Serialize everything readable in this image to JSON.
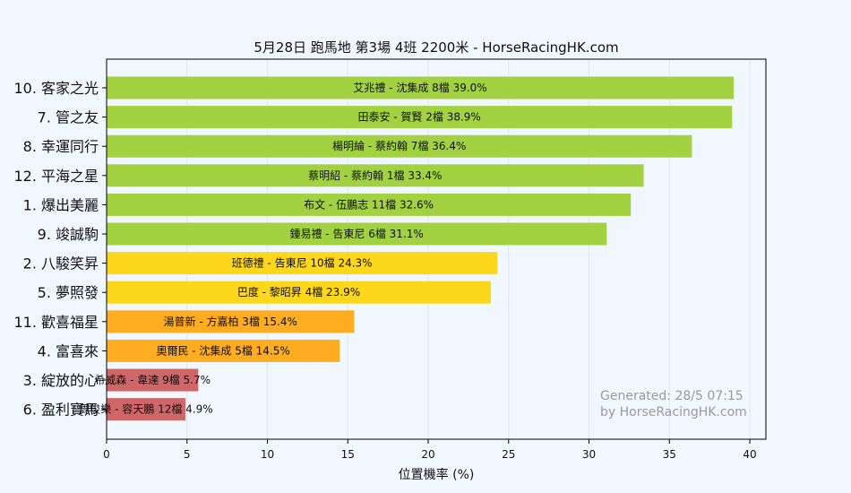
{
  "chart_data": {
    "type": "bar",
    "orientation": "horizontal",
    "title": "5月28日  跑馬地  第3場  4班  2200米 - HorseRacingHK.com",
    "xlabel": "位置機率 (%)",
    "ylabel": "",
    "xlim": [
      0,
      41
    ],
    "xticks": [
      0,
      5,
      10,
      15,
      20,
      25,
      30,
      35,
      40
    ],
    "grid": true,
    "categories": [
      "10. 客家之光",
      "7. 管之友",
      "8. 幸運同行",
      "12. 平海之星",
      "1. 爆出美麗",
      "9. 竣誠駒",
      "2. 八駿笑昇",
      "5. 夢照發",
      "11. 歡喜福星",
      "4. 富喜來",
      "3. 綻放的心",
      "6. 盈利寶馬"
    ],
    "values": [
      39.0,
      38.9,
      36.4,
      33.4,
      32.6,
      31.1,
      24.3,
      23.9,
      15.4,
      14.5,
      5.7,
      4.9
    ],
    "bar_labels": [
      "艾兆禮 - 沈集成 8檔  39.0%",
      "田泰安 - 賀賢 2檔  38.9%",
      "楊明綸 - 蔡約翰 7檔  36.4%",
      "蔡明紹 - 蔡約翰 1檔  33.4%",
      "布文 - 伍鵬志 11檔  32.6%",
      "鍾易禮 - 告東尼 6檔  31.1%",
      "班德禮 - 告東尼 10檔  24.3%",
      "巴度 - 黎昭昇 4檔  23.9%",
      "湯普新 - 方嘉柏 3檔  15.4%",
      "奧爾民 - 沈集成 5檔  14.5%",
      "希威森 - 韋達 9檔  5.7%",
      "周俊樂 - 容天鵬 12檔  4.9%"
    ],
    "bar_colors": [
      "#a2d241",
      "#a2d241",
      "#a2d241",
      "#a2d241",
      "#a2d241",
      "#a2d241",
      "#fdd71c",
      "#fdd71c",
      "#feac21",
      "#feac21",
      "#cf6667",
      "#cf6667"
    ],
    "annotations": [
      "Generated: 28/5 07:15",
      "by HorseRacingHK.com"
    ]
  },
  "colors": {
    "background": "#f1f7fe",
    "grid": "#dfe6ee",
    "axis": "#000000",
    "watermark": "#9a9a9a"
  }
}
